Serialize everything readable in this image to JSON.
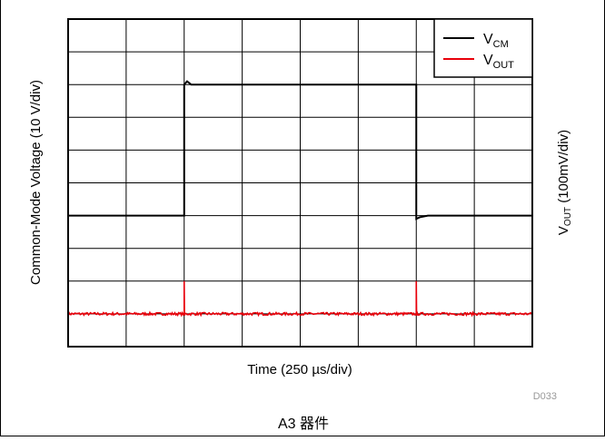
{
  "chart_data": {
    "type": "line",
    "xlabel": "Time (250 µs/div)",
    "ylabel_left": "Common-Mode Voltage (10 V/div)",
    "ylabel_right": {
      "base": "V",
      "sub": "OUT",
      "rest": " (100mV/div)"
    },
    "x_divisions": 8,
    "y_divisions": 10,
    "x_range_div": [
      0,
      8
    ],
    "y_range_div": [
      0,
      10
    ],
    "grid": true,
    "legend_position": "top-right",
    "legend": [
      {
        "base": "V",
        "sub": "CM",
        "color": "#000000"
      },
      {
        "base": "V",
        "sub": "OUT",
        "color": "#e8000b"
      }
    ],
    "series": [
      {
        "key": "vcm",
        "color": "#000000",
        "points": [
          [
            0,
            4
          ],
          [
            2.0,
            4
          ],
          [
            2.0,
            8.0
          ],
          [
            2.05,
            8.1
          ],
          [
            2.12,
            8.0
          ],
          [
            6.0,
            8.0
          ],
          [
            6.0,
            3.9
          ],
          [
            6.06,
            3.95
          ],
          [
            6.2,
            4.0
          ],
          [
            8,
            4
          ]
        ]
      },
      {
        "key": "vout",
        "color": "#e8000b",
        "baseline": 1.0,
        "noise_amplitude": 0.04,
        "spikes": [
          {
            "x": 2.0,
            "peak": 2.0
          },
          {
            "x": 6.0,
            "peak": 2.0
          }
        ]
      }
    ]
  },
  "figure_id": "D033",
  "caption": "A3 器件"
}
